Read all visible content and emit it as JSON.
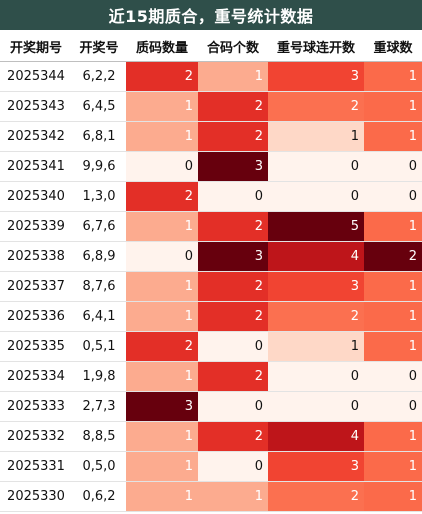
{
  "title": "近15期质合，重号统计数据",
  "colors": {
    "title_bg": "#2f4f4a",
    "scale": {
      "0": "#fff3ed",
      "1": "#fcab8f",
      "2": "#e32f27",
      "3": "#67000d",
      "1_repeat": "#fed8c7",
      "2_repeat": "#fb7050",
      "3_repeat": "#f14432",
      "4_repeat": "#be151a",
      "5_repeat": "#67000d",
      "1_rep": "#fb6a4a",
      "2_rep": "#67000d"
    }
  },
  "chart_data": {
    "type": "table",
    "columns": [
      "开奖期号",
      "开奖号",
      "质码数量",
      "合码个数",
      "重号球连开数",
      "重球数"
    ],
    "rows": [
      {
        "issue": "2025344",
        "draw": "6,2,2",
        "prime": 2,
        "composite": 1,
        "repeat_streak": 3,
        "repeat": 1
      },
      {
        "issue": "2025343",
        "draw": "6,4,5",
        "prime": 1,
        "composite": 2,
        "repeat_streak": 2,
        "repeat": 1
      },
      {
        "issue": "2025342",
        "draw": "6,8,1",
        "prime": 1,
        "composite": 2,
        "repeat_streak": 1,
        "repeat": 1
      },
      {
        "issue": "2025341",
        "draw": "9,9,6",
        "prime": 0,
        "composite": 3,
        "repeat_streak": 0,
        "repeat": 0
      },
      {
        "issue": "2025340",
        "draw": "1,3,0",
        "prime": 2,
        "composite": 0,
        "repeat_streak": 0,
        "repeat": 0
      },
      {
        "issue": "2025339",
        "draw": "6,7,6",
        "prime": 1,
        "composite": 2,
        "repeat_streak": 5,
        "repeat": 1
      },
      {
        "issue": "2025338",
        "draw": "6,8,9",
        "prime": 0,
        "composite": 3,
        "repeat_streak": 4,
        "repeat": 2
      },
      {
        "issue": "2025337",
        "draw": "8,7,6",
        "prime": 1,
        "composite": 2,
        "repeat_streak": 3,
        "repeat": 1
      },
      {
        "issue": "2025336",
        "draw": "6,4,1",
        "prime": 1,
        "composite": 2,
        "repeat_streak": 2,
        "repeat": 1
      },
      {
        "issue": "2025335",
        "draw": "0,5,1",
        "prime": 2,
        "composite": 0,
        "repeat_streak": 1,
        "repeat": 1
      },
      {
        "issue": "2025334",
        "draw": "1,9,8",
        "prime": 1,
        "composite": 2,
        "repeat_streak": 0,
        "repeat": 0
      },
      {
        "issue": "2025333",
        "draw": "2,7,3",
        "prime": 3,
        "composite": 0,
        "repeat_streak": 0,
        "repeat": 0
      },
      {
        "issue": "2025332",
        "draw": "8,8,5",
        "prime": 1,
        "composite": 2,
        "repeat_streak": 4,
        "repeat": 1
      },
      {
        "issue": "2025331",
        "draw": "0,5,0",
        "prime": 1,
        "composite": 0,
        "repeat_streak": 3,
        "repeat": 1
      },
      {
        "issue": "2025330",
        "draw": "0,6,2",
        "prime": 1,
        "composite": 1,
        "repeat_streak": 2,
        "repeat": 1
      }
    ]
  }
}
